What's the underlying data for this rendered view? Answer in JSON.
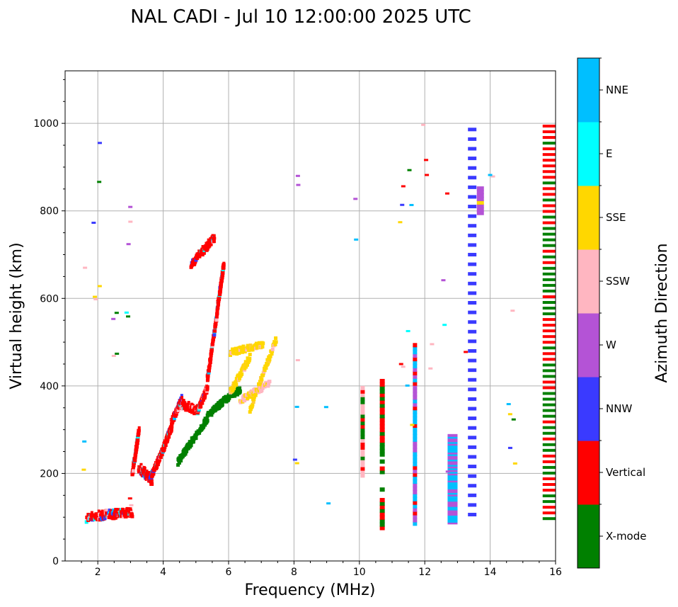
{
  "chart_data": {
    "type": "scatter",
    "title": "NAL CADI - Jul 10 12:00:00 2025 UTC",
    "xlabel": "Frequency (MHz)",
    "ylabel": "Virtual height (km)",
    "xlim": [
      1,
      16
    ],
    "ylim": [
      0,
      1120
    ],
    "xticks": [
      2,
      4,
      6,
      8,
      10,
      12,
      14,
      16
    ],
    "yticks": [
      0,
      200,
      400,
      600,
      800,
      1000
    ],
    "grid": true,
    "colorbar": {
      "title": "Azimuth Direction",
      "categories": [
        "X-mode",
        "Vertical",
        "NNW",
        "W",
        "SSW",
        "SSE",
        "E",
        "NNE"
      ],
      "colors": [
        "#008000",
        "#ff0000",
        "#3a3aff",
        "#b453d6",
        "#ffb6c1",
        "#ffd700",
        "#00ffff",
        "#00bfff"
      ]
    },
    "series": [
      {
        "name": "Vertical",
        "traces": [
          {
            "f0": 1.6,
            "f1": 2.4,
            "h0": 100,
            "h1": 110
          },
          {
            "f0": 2.4,
            "f1": 3.0,
            "h0": 108,
            "h1": 112
          },
          {
            "f0": 3.0,
            "f1": 3.2,
            "h0": 200,
            "h1": 300
          },
          {
            "f0": 3.2,
            "f1": 3.6,
            "h0": 215,
            "h1": 185
          },
          {
            "f0": 3.6,
            "f1": 3.9,
            "h0": 200,
            "h1": 250
          },
          {
            "f0": 3.9,
            "f1": 4.2,
            "h0": 250,
            "h1": 310
          },
          {
            "f0": 4.2,
            "f1": 4.5,
            "h0": 320,
            "h1": 370
          },
          {
            "f0": 4.5,
            "f1": 5.0,
            "h0": 360,
            "h1": 345
          },
          {
            "f0": 5.0,
            "f1": 5.3,
            "h0": 345,
            "h1": 400
          },
          {
            "f0": 5.3,
            "f1": 5.6,
            "h0": 420,
            "h1": 570
          },
          {
            "f0": 5.6,
            "f1": 5.8,
            "h0": 580,
            "h1": 680
          },
          {
            "f0": 4.8,
            "f1": 5.5,
            "h0": 680,
            "h1": 740
          }
        ]
      },
      {
        "name": "X-mode",
        "traces": [
          {
            "f0": 4.4,
            "f1": 4.8,
            "h0": 230,
            "h1": 275
          },
          {
            "f0": 4.8,
            "f1": 5.3,
            "h0": 275,
            "h1": 330
          },
          {
            "f0": 5.3,
            "f1": 5.8,
            "h0": 335,
            "h1": 370
          },
          {
            "f0": 5.8,
            "f1": 6.3,
            "h0": 370,
            "h1": 395
          }
        ]
      },
      {
        "name": "SSE",
        "traces": [
          {
            "f0": 6.0,
            "f1": 6.6,
            "h0": 390,
            "h1": 470
          },
          {
            "f0": 6.6,
            "f1": 7.4,
            "h0": 350,
            "h1": 510
          },
          {
            "f0": 6.0,
            "f1": 7.0,
            "h0": 480,
            "h1": 500
          }
        ]
      },
      {
        "name": "SSW",
        "traces": [
          {
            "f0": 6.3,
            "f1": 7.2,
            "h0": 370,
            "h1": 410
          }
        ]
      },
      {
        "name": "column-10.1",
        "traces": [
          {
            "f": 10.1,
            "h0": 200,
            "h1": 400
          }
        ]
      },
      {
        "name": "column-10.7",
        "traces": [
          {
            "f": 10.7,
            "h0": 80,
            "h1": 420
          }
        ]
      },
      {
        "name": "column-11.7",
        "traces": [
          {
            "f": 11.7,
            "h0": 90,
            "h1": 500
          }
        ]
      },
      {
        "name": "column-12.85",
        "traces": [
          {
            "f": 12.85,
            "h0": 90,
            "h1": 290
          }
        ]
      },
      {
        "name": "column-13.45",
        "traces": [
          {
            "f": 13.45,
            "h0": 110,
            "h1": 990
          }
        ]
      },
      {
        "name": "column-13.7",
        "traces": [
          {
            "f": 13.7,
            "h0": 800,
            "h1": 860
          }
        ]
      },
      {
        "name": "column-15.8",
        "traces": [
          {
            "f": 15.8,
            "h0": 100,
            "h1": 1005
          }
        ]
      }
    ]
  }
}
